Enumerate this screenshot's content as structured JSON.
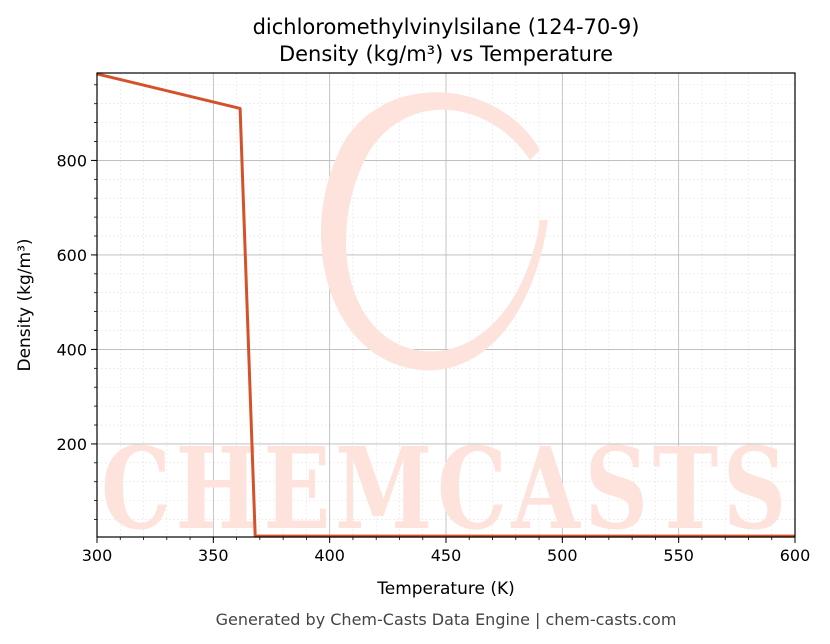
{
  "chart_data": {
    "type": "line",
    "title": "dichloromethylvinylsilane (124-70-9)",
    "subtitle": "Density (kg/m³) vs Temperature",
    "xlabel": "Temperature (K)",
    "ylabel": "Density (kg/m³)",
    "xlim": [
      300,
      600
    ],
    "ylim": [
      3,
      985
    ],
    "xticks": [
      300,
      350,
      400,
      450,
      500,
      550,
      600
    ],
    "yticks": [
      200,
      400,
      600,
      800
    ],
    "grid": true,
    "line_color": "#d4522a",
    "series": [
      {
        "x": [
          300,
          361.5,
          368,
          600
        ],
        "y": [
          983,
          910,
          5,
          5
        ]
      }
    ]
  },
  "watermark": {
    "text": "CHEMCASTS",
    "color": "#fde3dc"
  },
  "footer": "Generated by Chem-Casts Data Engine | chem-casts.com"
}
